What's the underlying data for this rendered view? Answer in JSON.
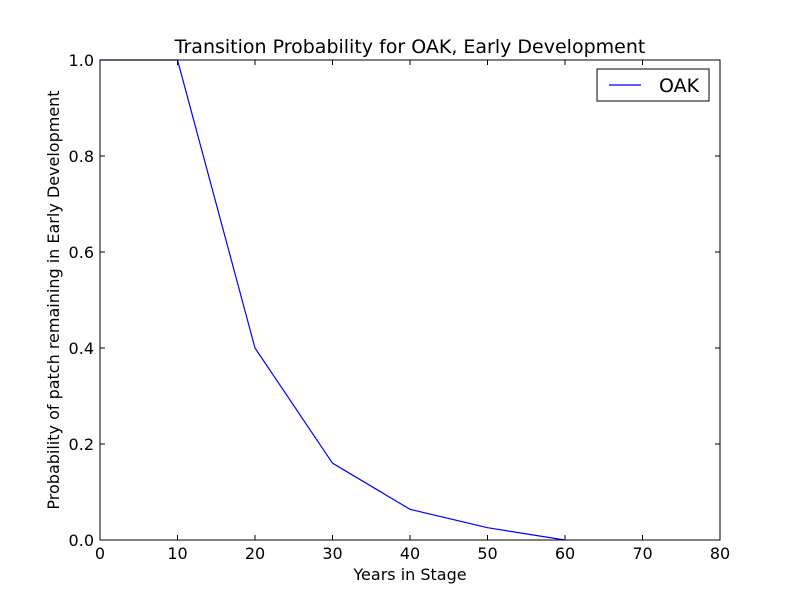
{
  "chart_data": {
    "type": "line",
    "title": "Transition Probability for OAK, Early Development",
    "xlabel": "Years in Stage",
    "ylabel": "Probability of patch remaining in Early Development",
    "xlim": [
      0,
      80
    ],
    "ylim": [
      0.0,
      1.0
    ],
    "xticks": [
      0,
      10,
      20,
      30,
      40,
      50,
      60,
      70,
      80
    ],
    "yticks": [
      0.0,
      0.2,
      0.4,
      0.6,
      0.8,
      1.0
    ],
    "xtick_labels": [
      "0",
      "10",
      "20",
      "30",
      "40",
      "50",
      "60",
      "70",
      "80"
    ],
    "ytick_labels": [
      "0.0",
      "0.2",
      "0.4",
      "0.6",
      "0.8",
      "1.0"
    ],
    "grid": false,
    "legend_position": "top-right",
    "series": [
      {
        "name": "OAK",
        "color": "#0000ff",
        "x": [
          0,
          10,
          20,
          30,
          40,
          50,
          60
        ],
        "y": [
          1.0,
          1.0,
          0.4,
          0.16,
          0.064,
          0.0256,
          0.0
        ]
      }
    ]
  }
}
